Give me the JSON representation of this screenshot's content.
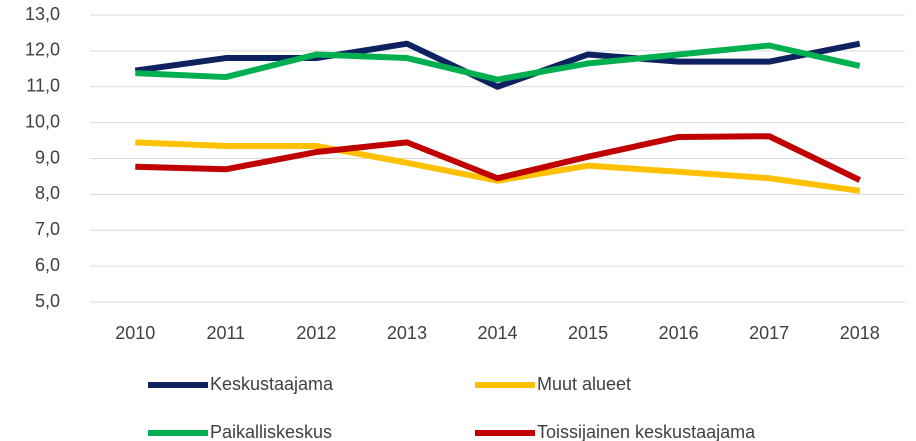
{
  "chart_data": {
    "type": "line",
    "categories": [
      "2010",
      "2011",
      "2012",
      "2013",
      "2014",
      "2015",
      "2016",
      "2017",
      "2018"
    ],
    "series": [
      {
        "name": "Keskustaajama",
        "color": "#0f2260",
        "values": [
          11.45,
          11.8,
          11.8,
          12.2,
          11.0,
          11.9,
          11.7,
          11.7,
          12.2
        ]
      },
      {
        "name": "Muut alueet",
        "color": "#ffc000",
        "values": [
          9.45,
          9.35,
          9.35,
          8.88,
          8.38,
          8.8,
          8.63,
          8.45,
          8.1
        ]
      },
      {
        "name": "Paikalliskeskus",
        "color": "#00b050",
        "values": [
          11.38,
          11.27,
          11.9,
          11.8,
          11.2,
          11.65,
          11.9,
          12.15,
          11.58
        ]
      },
      {
        "name": "Toissijainen keskustaajama",
        "color": "#c00000",
        "values": [
          8.77,
          8.7,
          9.18,
          9.45,
          8.45,
          9.05,
          9.6,
          9.62,
          8.4
        ]
      }
    ],
    "ylim": [
      5,
      13
    ],
    "yticks": [
      {
        "value": 5,
        "label": "5,0"
      },
      {
        "value": 6,
        "label": "6,0"
      },
      {
        "value": 7,
        "label": "7,0"
      },
      {
        "value": 8,
        "label": "8,0"
      },
      {
        "value": 9,
        "label": "9,0"
      },
      {
        "value": 10,
        "label": "10,0"
      },
      {
        "value": 11,
        "label": "11,0"
      },
      {
        "value": 12,
        "label": "12,0"
      },
      {
        "value": 13,
        "label": "13,0"
      }
    ],
    "grid": true
  }
}
